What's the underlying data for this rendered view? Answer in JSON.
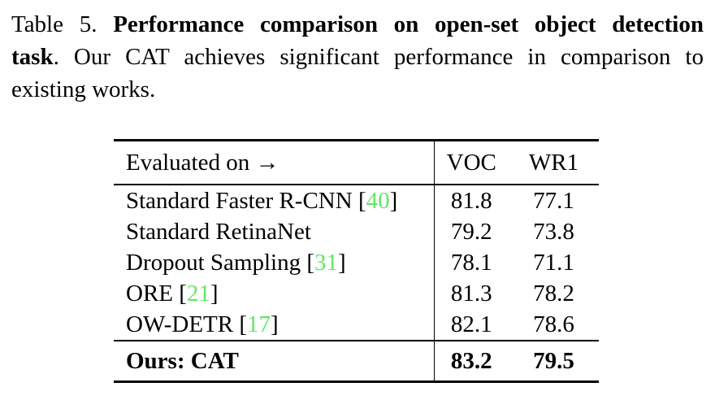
{
  "colors": {
    "citation_green": "#63e763",
    "text": "#000000",
    "background": "#ffffff"
  },
  "caption": {
    "line1_normal": "Table 5.",
    "line1_bold": "Performance comparison on open-set object detection",
    "line2_bold": "task",
    "line2_normal": ". Our CAT achieves significant performance in comparison to",
    "line3_normal": "existing works."
  },
  "table": {
    "header": {
      "row_label": "Evaluated on →",
      "col_voc": "VOC",
      "col_wr1": "WR1"
    },
    "rows": [
      {
        "method": "Standard Faster R-CNN",
        "cite_open": " [",
        "cite": "40",
        "cite_close": "]",
        "voc": "81.8",
        "wr1": "77.1"
      },
      {
        "method": "Standard RetinaNet",
        "cite_open": "",
        "cite": "",
        "cite_close": "",
        "voc": "79.2",
        "wr1": "73.8"
      },
      {
        "method": "Dropout Sampling",
        "cite_open": " [",
        "cite": "31",
        "cite_close": "]",
        "voc": "78.1",
        "wr1": "71.1"
      },
      {
        "method": "ORE",
        "cite_open": " [",
        "cite": "21",
        "cite_close": "]",
        "voc": "81.3",
        "wr1": "78.2"
      },
      {
        "method": "OW-DETR",
        "cite_open": " [",
        "cite": "17",
        "cite_close": "]",
        "voc": "82.1",
        "wr1": "78.6"
      }
    ],
    "footer": {
      "method": "Ours: CAT",
      "voc": "83.2",
      "wr1": "79.5"
    }
  }
}
